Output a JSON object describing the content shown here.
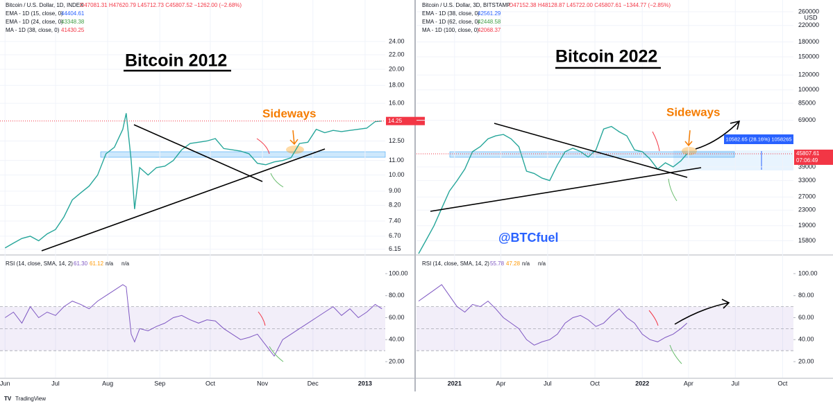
{
  "currency": "USD",
  "footer": "TradingView",
  "chart_data": [
    {
      "type": "line",
      "title": "Bitcoin 2012",
      "annotation": "Sideways",
      "symbol": "Bitcoin / U.S. Dollar, 1D, INDEX",
      "ohlc": "O47081.31 H47620.79 L45712.73 C45807.52 −1262.00 (−2.68%)",
      "indicators": [
        {
          "name": "EMA - 1D (15, close, 0)",
          "value": "44404.61",
          "color": "#2962ff"
        },
        {
          "name": "EMA - 1D (24, close, 0)",
          "value": "43348.38",
          "color": "#43a047"
        },
        {
          "name": "MA - 1D (38, close, 0)",
          "value": "41430.25",
          "color": "#f23645"
        }
      ],
      "log_scale": true,
      "color": "#26a69a",
      "last_price": 14.25,
      "xlim": [
        -3,
        226
      ],
      "ylim": [
        5.95,
        31.5
      ],
      "xticks": [
        {
          "value": 0,
          "label": "Jun"
        },
        {
          "value": 30,
          "label": "Jul"
        },
        {
          "value": 61,
          "label": "Aug"
        },
        {
          "value": 92,
          "label": "Sep"
        },
        {
          "value": 122,
          "label": "Oct"
        },
        {
          "value": 153,
          "label": "Nov"
        },
        {
          "value": 183,
          "label": "Dec"
        },
        {
          "value": 214,
          "label": "2013"
        }
      ],
      "yticks": [
        {
          "value": 24,
          "label": "24.00"
        },
        {
          "value": 22,
          "label": "22.00"
        },
        {
          "value": 20,
          "label": "20.00"
        },
        {
          "value": 18,
          "label": "18.00"
        },
        {
          "value": 16,
          "label": "16.00"
        },
        {
          "value": 12.5,
          "label": "12.50"
        },
        {
          "value": 11,
          "label": "11.00"
        },
        {
          "value": 10,
          "label": "10.00"
        },
        {
          "value": 9,
          "label": "9.00"
        },
        {
          "value": 8.2,
          "label": "8.20"
        },
        {
          "value": 7.4,
          "label": "7.40"
        },
        {
          "value": 6.7,
          "label": "6.70"
        },
        {
          "value": 6.15,
          "label": "6.15"
        }
      ],
      "x": [
        0,
        5,
        10,
        15,
        20,
        25,
        30,
        35,
        40,
        45,
        50,
        55,
        60,
        65,
        70,
        72,
        75,
        77,
        80,
        85,
        90,
        95,
        100,
        105,
        110,
        115,
        120,
        125,
        130,
        135,
        140,
        145,
        150,
        155,
        160,
        165,
        170,
        175,
        180,
        185,
        190,
        195,
        200,
        205,
        210,
        215,
        220,
        224
      ],
      "values": [
        6.2,
        6.4,
        6.6,
        6.7,
        6.5,
        6.8,
        7.0,
        7.6,
        8.5,
        8.9,
        9.3,
        10.0,
        11.5,
        12.0,
        13.5,
        15.0,
        11.0,
        8.0,
        10.5,
        10.0,
        10.5,
        10.6,
        11.0,
        11.8,
        12.3,
        12.4,
        12.5,
        12.7,
        11.9,
        11.8,
        11.7,
        11.5,
        10.8,
        10.7,
        10.9,
        11.0,
        11.2,
        12.3,
        12.4,
        13.5,
        13.2,
        13.4,
        13.3,
        13.4,
        13.5,
        13.6,
        14.2,
        14.25
      ],
      "rsi": {
        "label": "RSI (14, close, SMA, 14, 2)",
        "readout": [
          "61.30",
          "61.12",
          "n/a",
          "n/a"
        ],
        "color": "#7e57c2",
        "ylim": [
          5.5,
          115.7
        ],
        "levels": [
          70,
          50,
          30
        ],
        "yticks": [
          {
            "value": 100,
            "label": "100.00"
          },
          {
            "value": 80,
            "label": "80.00"
          },
          {
            "value": 60,
            "label": "60.00"
          },
          {
            "value": 40,
            "label": "40.00"
          },
          {
            "value": 20,
            "label": "20.00"
          }
        ],
        "values": [
          60,
          65,
          55,
          70,
          60,
          65,
          62,
          70,
          75,
          72,
          68,
          75,
          80,
          85,
          90,
          88,
          45,
          38,
          50,
          48,
          52,
          55,
          60,
          62,
          58,
          55,
          58,
          57,
          50,
          45,
          40,
          42,
          45,
          35,
          25,
          40,
          45,
          50,
          55,
          60,
          65,
          70,
          62,
          68,
          60,
          65,
          72,
          68
        ]
      }
    },
    {
      "type": "line",
      "title": "Bitcoin 2022",
      "annotation": "Sideways",
      "watermark": "@BTCfuel",
      "symbol": "Bitcoin / U.S. Dollar, 3D, BITSTAMP",
      "ohlc": "O47152.38 H48128.87 L45722.00 C45807.61 −1344.77 (−2.85%)",
      "indicators": [
        {
          "name": "EMA - 1D (38, close, 0)",
          "value": "42561.29",
          "color": "#2962ff"
        },
        {
          "name": "EMA - 1D (62, close, 0)",
          "value": "42448.58",
          "color": "#43a047"
        },
        {
          "name": "MA - 1D (100, close, 0)",
          "value": "42068.37",
          "color": "#f23645"
        }
      ],
      "log_scale": true,
      "color": "#26a69a",
      "last_price": 45807.61,
      "countdown": "07:06:49",
      "measure": "10582.65 (28.16%) 1058265",
      "xlim": [
        -74,
        659
      ],
      "ylim": [
        13400,
        300400
      ],
      "xticks": [
        {
          "value": 0,
          "label": "2021"
        },
        {
          "value": 90,
          "label": "Apr"
        },
        {
          "value": 181,
          "label": "Jul"
        },
        {
          "value": 273,
          "label": "Oct"
        },
        {
          "value": 365,
          "label": "2022"
        },
        {
          "value": 455,
          "label": "Apr"
        },
        {
          "value": 546,
          "label": "Jul"
        },
        {
          "value": 638,
          "label": "Oct"
        }
      ],
      "yticks": [
        260000,
        220000,
        180000,
        150000,
        120000,
        100000,
        85000,
        69000,
        39000,
        33000,
        27000,
        23000,
        19000,
        15800
      ],
      "x": [
        -70,
        -55,
        -40,
        -25,
        -10,
        5,
        20,
        35,
        50,
        65,
        80,
        95,
        110,
        125,
        140,
        155,
        170,
        185,
        200,
        215,
        230,
        245,
        260,
        275,
        290,
        305,
        320,
        335,
        350,
        365,
        380,
        395,
        410,
        425,
        440,
        452
      ],
      "values": [
        13500,
        16000,
        19000,
        23500,
        29000,
        33000,
        38000,
        47000,
        50000,
        55000,
        57000,
        58000,
        55000,
        50000,
        37000,
        36000,
        34000,
        33000,
        40000,
        47000,
        49000,
        47000,
        44000,
        48000,
        62000,
        64000,
        60000,
        57000,
        48000,
        47000,
        43000,
        38000,
        41000,
        39000,
        42000,
        45807.61
      ],
      "rsi": {
        "label": "RSI (14, close, SMA, 14, 2)",
        "readout": [
          "55.78",
          "47.28",
          "n/a",
          "n/a"
        ],
        "color": "#7e57c2",
        "ylim": [
          5.5,
          115.7
        ],
        "levels": [
          70,
          50,
          30
        ],
        "yticks": [
          {
            "value": 100,
            "label": "100.00"
          },
          {
            "value": 80,
            "label": "80.00"
          },
          {
            "value": 60,
            "label": "60.00"
          },
          {
            "value": 40,
            "label": "40.00"
          },
          {
            "value": 20,
            "label": "20.00"
          }
        ],
        "values": [
          75,
          80,
          85,
          90,
          80,
          70,
          65,
          72,
          70,
          75,
          68,
          60,
          55,
          50,
          40,
          35,
          38,
          40,
          45,
          55,
          60,
          62,
          58,
          52,
          55,
          62,
          68,
          60,
          55,
          45,
          40,
          38,
          42,
          45,
          50,
          55
        ]
      }
    }
  ]
}
